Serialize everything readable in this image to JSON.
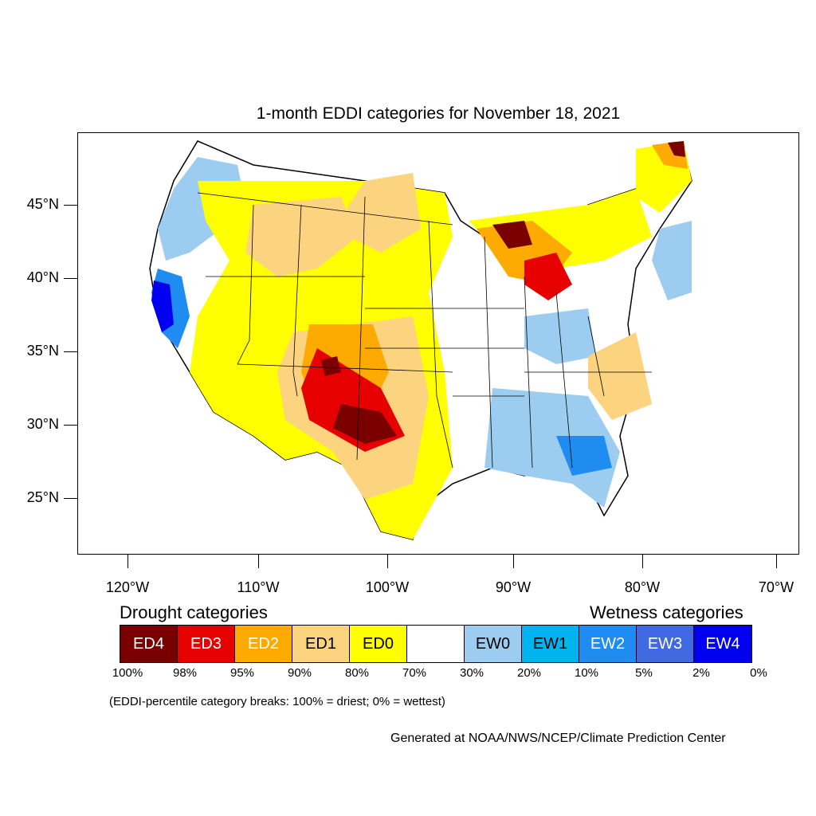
{
  "title": "1-month EDDI categories for November 18, 2021",
  "lat_labels": [
    "45°N",
    "40°N",
    "35°N",
    "30°N",
    "25°N"
  ],
  "lon_labels": [
    "120°W",
    "110°W",
    "100°W",
    "90°W",
    "80°W",
    "70°W"
  ],
  "legend": {
    "drought_heading": "Drought categories",
    "wetness_heading": "Wetness categories",
    "categories": [
      {
        "label": "ED4",
        "color": "#7a0000",
        "text_color": "#ffffff"
      },
      {
        "label": "ED3",
        "color": "#e60000",
        "text_color": "#ffffff"
      },
      {
        "label": "ED2",
        "color": "#ffaa00",
        "text_color": "#ffffff"
      },
      {
        "label": "ED1",
        "color": "#fcd37f",
        "text_color": "#000000"
      },
      {
        "label": "ED0",
        "color": "#ffff00",
        "text_color": "#000000"
      },
      {
        "label": "",
        "color": "#ffffff",
        "text_color": "#000000"
      },
      {
        "label": "EW0",
        "color": "#9ccdf0",
        "text_color": "#000000"
      },
      {
        "label": "EW1",
        "color": "#00b4f0",
        "text_color": "#000000"
      },
      {
        "label": "EW2",
        "color": "#1e8cf0",
        "text_color": "#ffffff"
      },
      {
        "label": "EW3",
        "color": "#4169e1",
        "text_color": "#ffffff"
      },
      {
        "label": "EW4",
        "color": "#0000f0",
        "text_color": "#ffffff"
      }
    ],
    "percentiles": [
      "100%",
      "98%",
      "95%",
      "90%",
      "80%",
      "70%",
      "30%",
      "20%",
      "10%",
      "5%",
      "2%",
      "0%"
    ]
  },
  "note": "(EDDI-percentile category breaks: 100% = driest; 0% = wettest)",
  "credit": "Generated at NOAA/NWS/NCEP/Climate Prediction Center"
}
